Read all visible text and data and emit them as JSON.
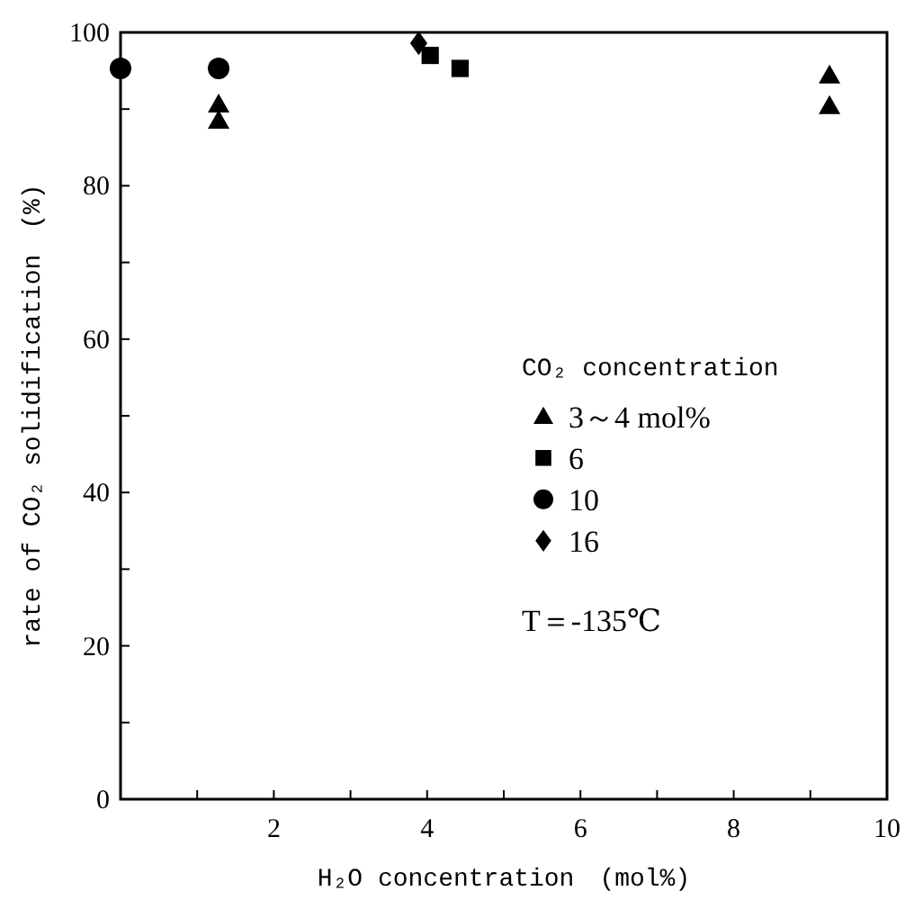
{
  "chart_data": {
    "type": "scatter",
    "xlabel": "H₂O concentration　(mol%)",
    "ylabel": "rate of CO₂ solidification　(%)",
    "legend_title": "CO₂ concentration",
    "legend": "right",
    "grid": false,
    "xlim": [
      0,
      10
    ],
    "xticks": [
      {
        "value": 1,
        "label": null
      },
      2,
      {
        "value": 3,
        "label": null
      },
      4,
      {
        "value": 5,
        "label": null
      },
      6,
      {
        "value": 7,
        "label": null
      },
      8,
      {
        "value": 9,
        "label": null
      },
      10
    ],
    "ylim": [
      0,
      100
    ],
    "yticks": [
      0,
      {
        "value": 10,
        "label": null
      },
      20,
      {
        "value": 30,
        "label": null
      },
      40,
      {
        "value": 50,
        "label": null
      },
      60,
      {
        "value": 70,
        "label": null
      },
      80,
      {
        "value": 90,
        "label": null
      },
      100
    ],
    "annotations": [
      "T＝-135℃"
    ],
    "series": [
      {
        "name": "3～4 mol%",
        "color": "#000000",
        "marker": "triangle",
        "x": [
          1.28,
          1.28,
          9.25,
          9.25
        ],
        "values": [
          90.6,
          88.5,
          94.4,
          90.4
        ]
      },
      {
        "name": "6",
        "color": "#000000",
        "marker": "square",
        "x": [
          4.04,
          4.43
        ],
        "values": [
          97,
          95.3
        ]
      },
      {
        "name": "10",
        "color": "#000000",
        "marker": "circle",
        "x": [
          0,
          1.28
        ],
        "values": [
          95.3,
          95.3
        ]
      },
      {
        "name": "16",
        "color": "#000000",
        "marker": "diamond",
        "x": [
          3.89
        ],
        "values": [
          98.6
        ]
      }
    ]
  }
}
